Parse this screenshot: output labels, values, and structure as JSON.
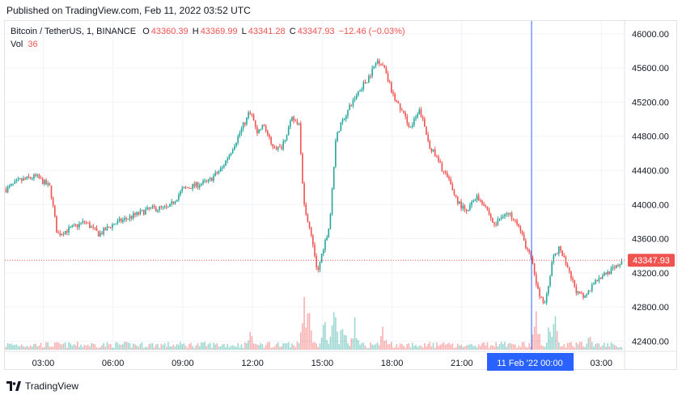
{
  "published": "Published on TradingView.com, Feb 11, 2022 03:52 UTC",
  "legend": {
    "symbol": "Bitcoin / TetherUS, 1, BINANCE",
    "o_label": "O",
    "o": "43360.39",
    "h_label": "H",
    "h": "43369.99",
    "l_label": "L",
    "l": "43341.28",
    "c_label": "C",
    "c": "43347.93",
    "change": "−12.46 (−0.03%)",
    "vol_label": "Vol",
    "vol": "36"
  },
  "footer": {
    "brand": "TradingView",
    "logo_icon": "tradingview-logo-icon"
  },
  "colors": {
    "up": "#26a69a",
    "down": "#ef5350",
    "crosshair": "#2962ff",
    "grid": "#f0f3fa",
    "axis_text": "#131722"
  },
  "chart_data": {
    "type": "candlestick",
    "title": "Bitcoin / TetherUS, 1, BINANCE",
    "y_axis": {
      "ticks": [
        "46000.00",
        "45600.00",
        "45200.00",
        "44800.00",
        "44400.00",
        "44000.00",
        "43600.00",
        "43200.00",
        "42800.00",
        "42400.00"
      ],
      "tick_values": [
        46000,
        45600,
        45200,
        44800,
        44400,
        44000,
        43600,
        43200,
        42800,
        42400
      ],
      "range": [
        42300,
        46150
      ]
    },
    "x_axis": {
      "ticks": [
        "03:00",
        "06:00",
        "09:00",
        "12:00",
        "15:00",
        "18:00",
        "21:00",
        "03:00"
      ],
      "tick_hours": [
        3,
        6,
        9,
        12,
        15,
        18,
        21,
        27
      ],
      "range_hours": [
        1.35,
        28.0
      ]
    },
    "last_price": {
      "label": "43347.93",
      "value": 43347.93
    },
    "crosshair": {
      "label": "11 Feb '22   00:00",
      "hour": 24
    },
    "grid": true,
    "price_path": [
      {
        "t": 1.4,
        "p": 44180
      },
      {
        "t": 2.0,
        "p": 44280
      },
      {
        "t": 2.7,
        "p": 44330
      },
      {
        "t": 3.3,
        "p": 44200
      },
      {
        "t": 3.6,
        "p": 43650
      },
      {
        "t": 4.2,
        "p": 43720
      },
      {
        "t": 4.8,
        "p": 43800
      },
      {
        "t": 5.4,
        "p": 43650
      },
      {
        "t": 6.0,
        "p": 43770
      },
      {
        "t": 6.8,
        "p": 43860
      },
      {
        "t": 7.6,
        "p": 43950
      },
      {
        "t": 8.4,
        "p": 43960
      },
      {
        "t": 9.0,
        "p": 44180
      },
      {
        "t": 9.6,
        "p": 44230
      },
      {
        "t": 10.1,
        "p": 44270
      },
      {
        "t": 10.7,
        "p": 44430
      },
      {
        "t": 11.3,
        "p": 44750
      },
      {
        "t": 11.9,
        "p": 45100
      },
      {
        "t": 12.2,
        "p": 44850
      },
      {
        "t": 12.5,
        "p": 44930
      },
      {
        "t": 12.8,
        "p": 44700
      },
      {
        "t": 13.2,
        "p": 44650
      },
      {
        "t": 13.7,
        "p": 45000
      },
      {
        "t": 14.0,
        "p": 44950
      },
      {
        "t": 14.2,
        "p": 44000
      },
      {
        "t": 14.5,
        "p": 43700
      },
      {
        "t": 14.8,
        "p": 43200
      },
      {
        "t": 15.0,
        "p": 43450
      },
      {
        "t": 15.3,
        "p": 43750
      },
      {
        "t": 15.6,
        "p": 44800
      },
      {
        "t": 15.9,
        "p": 45000
      },
      {
        "t": 16.3,
        "p": 45200
      },
      {
        "t": 16.6,
        "p": 45350
      },
      {
        "t": 16.9,
        "p": 45450
      },
      {
        "t": 17.4,
        "p": 45700
      },
      {
        "t": 17.7,
        "p": 45600
      },
      {
        "t": 18.0,
        "p": 45300
      },
      {
        "t": 18.4,
        "p": 45100
      },
      {
        "t": 18.8,
        "p": 44900
      },
      {
        "t": 19.2,
        "p": 45100
      },
      {
        "t": 19.6,
        "p": 44700
      },
      {
        "t": 20.0,
        "p": 44500
      },
      {
        "t": 20.4,
        "p": 44300
      },
      {
        "t": 20.8,
        "p": 44050
      },
      {
        "t": 21.2,
        "p": 43900
      },
      {
        "t": 21.6,
        "p": 44100
      },
      {
        "t": 22.0,
        "p": 44000
      },
      {
        "t": 22.4,
        "p": 43750
      },
      {
        "t": 22.8,
        "p": 43900
      },
      {
        "t": 23.3,
        "p": 43850
      },
      {
        "t": 23.7,
        "p": 43550
      },
      {
        "t": 24.0,
        "p": 43350
      },
      {
        "t": 24.3,
        "p": 42950
      },
      {
        "t": 24.6,
        "p": 42850
      },
      {
        "t": 24.9,
        "p": 43350
      },
      {
        "t": 25.2,
        "p": 43500
      },
      {
        "t": 25.6,
        "p": 43200
      },
      {
        "t": 26.0,
        "p": 42950
      },
      {
        "t": 26.3,
        "p": 42900
      },
      {
        "t": 26.7,
        "p": 43100
      },
      {
        "t": 27.2,
        "p": 43200
      },
      {
        "t": 27.6,
        "p": 43250
      },
      {
        "t": 27.9,
        "p": 43348
      }
    ],
    "volume_spikes": [
      {
        "t": 14.2,
        "v": 1.0
      },
      {
        "t": 14.4,
        "v": 0.7
      },
      {
        "t": 15.1,
        "v": 0.45
      },
      {
        "t": 15.5,
        "v": 0.95
      },
      {
        "t": 15.9,
        "v": 0.55
      },
      {
        "t": 16.4,
        "v": 0.5
      },
      {
        "t": 11.9,
        "v": 0.3
      },
      {
        "t": 17.6,
        "v": 0.35
      },
      {
        "t": 24.2,
        "v": 0.6
      },
      {
        "t": 24.8,
        "v": 0.45
      },
      {
        "t": 25.0,
        "v": 0.55
      },
      {
        "t": 26.5,
        "v": 0.3
      }
    ]
  }
}
